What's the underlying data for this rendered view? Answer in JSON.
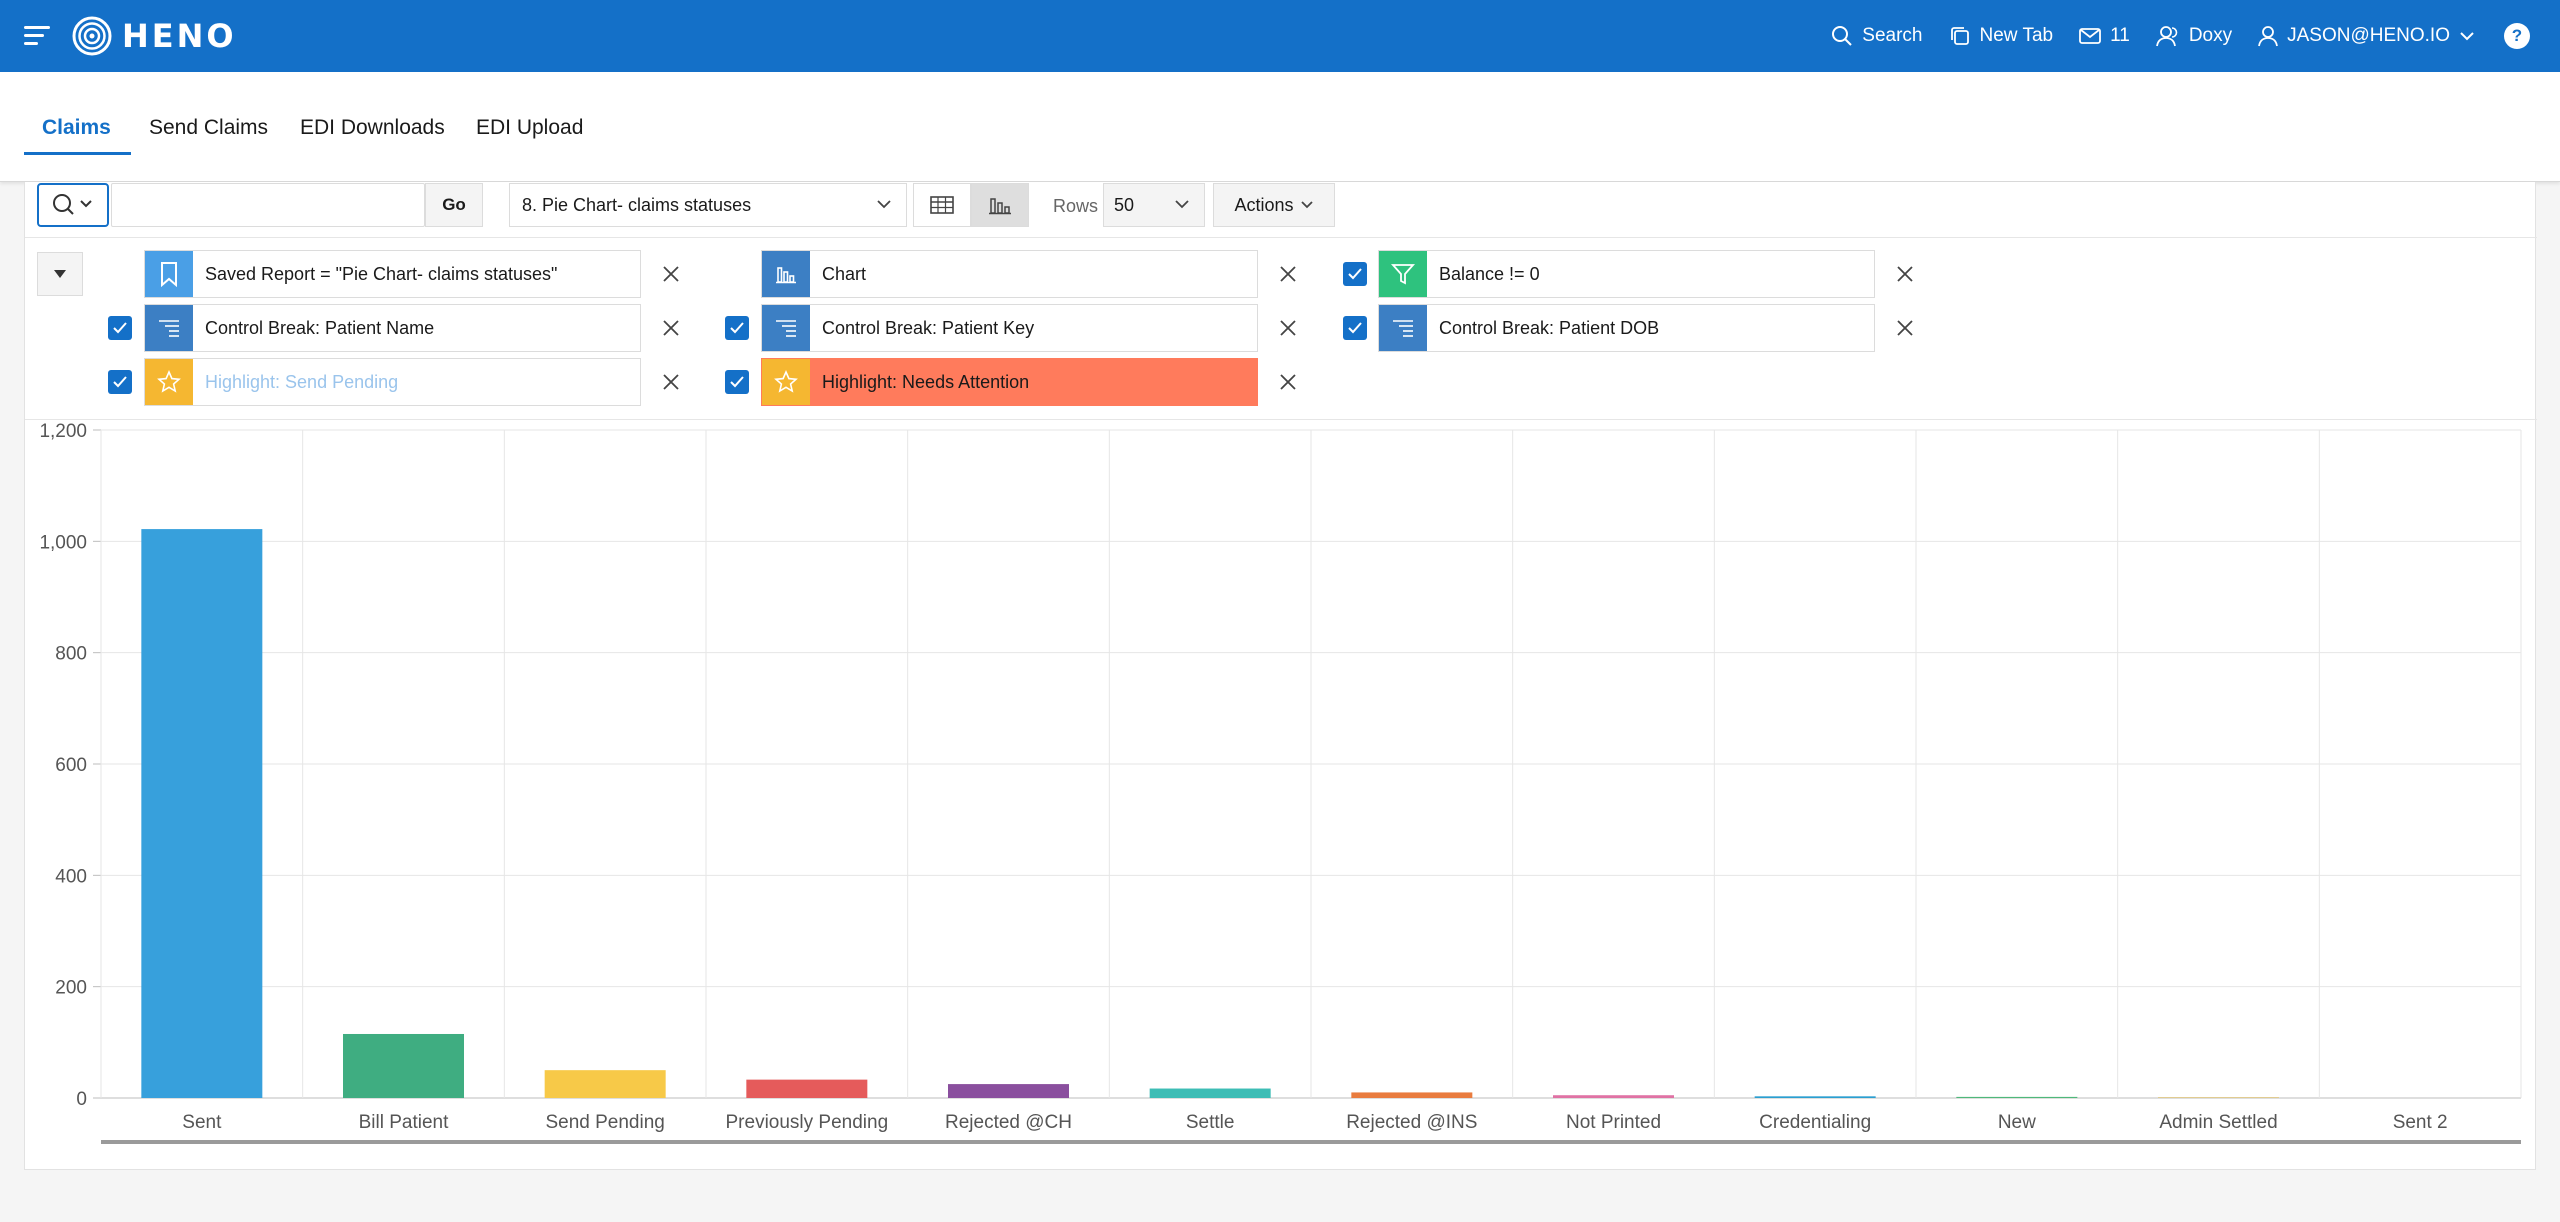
{
  "header": {
    "brand": "HENO",
    "nav": {
      "search": "Search",
      "new_tab": "New Tab",
      "mail_count": "11",
      "doxy": "Doxy",
      "user": "JASON@HENO.IO",
      "help": "?"
    }
  },
  "tabs": [
    "Claims",
    "Send Claims",
    "EDI Downloads",
    "EDI Upload"
  ],
  "toolbar": {
    "go": "Go",
    "report": "8. Pie Chart- claims statuses",
    "rows_label": "Rows",
    "rows_value": "50",
    "actions": "Actions"
  },
  "filters": {
    "saved_report": "Saved Report = \"Pie Chart- claims statuses\"",
    "chart": "Chart",
    "balance": "Balance != 0",
    "cb_patient_name": "Control Break: Patient Name",
    "cb_patient_key": "Control Break: Patient Key",
    "cb_patient_dob": "Control Break: Patient DOB",
    "hl_send_pending": "Highlight: Send Pending",
    "hl_needs_attention": "Highlight: Needs Attention"
  },
  "colors": {
    "brand": "#1470c8",
    "saved_report_icon": "#4a9fe6",
    "filter_icon": "#2ec27e",
    "control_break_icon": "#3c7fc4",
    "highlight_icon": "#f5b731",
    "needs_attention_bg": "#ff7b5c"
  },
  "chart_data": {
    "type": "bar",
    "categories": [
      "Sent",
      "Bill Patient",
      "Send Pending",
      "Previously Pending",
      "Rejected @CH",
      "Settle",
      "Rejected @INS",
      "Not Printed",
      "Credentialing",
      "New",
      "Admin Settled",
      "Sent 2"
    ],
    "values": [
      1022,
      115,
      50,
      33,
      25,
      17,
      10,
      5,
      3,
      2,
      1,
      0
    ],
    "colors": [
      "#37a0dc",
      "#3fad81",
      "#f7c948",
      "#e55b5b",
      "#8a4f9e",
      "#3dbdb5",
      "#e97c3f",
      "#e072a4",
      "#2b9fd0",
      "#4fb87a",
      "#c9a33a",
      "#8a8a8a"
    ],
    "yticks": [
      "0",
      "200",
      "400",
      "600",
      "800",
      "1,000",
      "1,200"
    ],
    "ylim": [
      0,
      1200
    ],
    "grid": true
  }
}
